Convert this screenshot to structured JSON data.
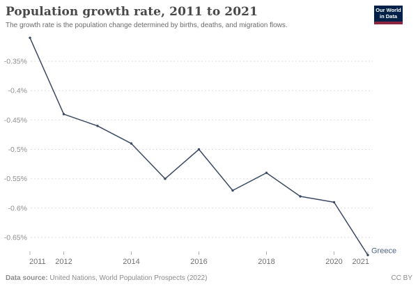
{
  "header": {
    "logo": {
      "line1": "Our World",
      "line2": "in Data",
      "bg_color": "#002147",
      "accent_color": "#8c2640"
    }
  },
  "footer": {
    "source_label": "Data source:",
    "source_text": " United Nations, World Population Prospects (2022)",
    "license": "CC BY"
  },
  "chart_data": {
    "type": "line",
    "title": "Population growth rate, 2011 to 2021",
    "subtitle": "The growth rate is the population change determined by births, deaths, and migration flows.",
    "x": [
      2011,
      2012,
      2013,
      2014,
      2015,
      2016,
      2017,
      2018,
      2019,
      2020,
      2021
    ],
    "series": [
      {
        "name": "Greece",
        "color": "#3b4a63",
        "label_color": "#4d648c",
        "values": [
          -0.31,
          -0.44,
          -0.46,
          -0.49,
          -0.55,
          -0.5,
          -0.57,
          -0.54,
          -0.58,
          -0.59,
          -0.68
        ]
      }
    ],
    "unit": "%",
    "x_tick_years": [
      2011,
      2012,
      2014,
      2016,
      2018,
      2020,
      2021
    ],
    "x_tick_labels": [
      "2011",
      "2012",
      "2014",
      "2016",
      "2018",
      "2020",
      "2021"
    ],
    "y_ticks": [
      {
        "value": -0.35,
        "label": "-0.35%"
      },
      {
        "value": -0.4,
        "label": "-0.4%"
      },
      {
        "value": -0.45,
        "label": "-0.45%"
      },
      {
        "value": -0.5,
        "label": "-0.5%"
      },
      {
        "value": -0.55,
        "label": "-0.55%"
      },
      {
        "value": -0.6,
        "label": "-0.6%"
      },
      {
        "value": -0.65,
        "label": "-0.65%"
      }
    ],
    "xlim": [
      2011,
      2021
    ],
    "ylim": [
      -0.69,
      -0.3
    ],
    "grid": "horizontal-dashed",
    "legend_position": "end-of-line"
  }
}
